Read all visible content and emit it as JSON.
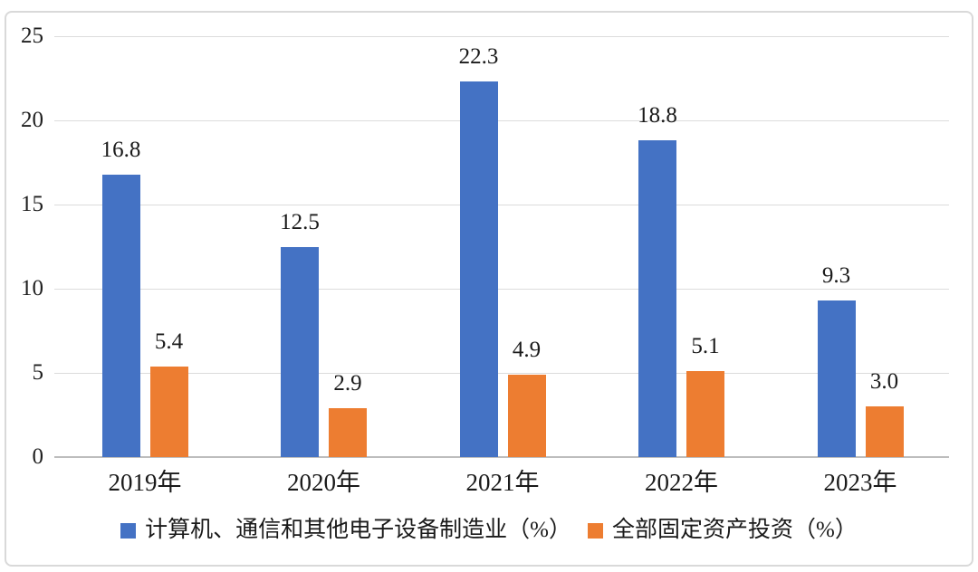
{
  "chart_data": {
    "type": "bar",
    "title": "",
    "xlabel": "",
    "ylabel": "",
    "categories": [
      "2019年",
      "2020年",
      "2021年",
      "2022年",
      "2023年"
    ],
    "series": [
      {
        "name": "计算机、通信和其他电子设备制造业（%）",
        "color": "#4472C4",
        "values": [
          16.8,
          12.5,
          22.3,
          18.8,
          9.3
        ]
      },
      {
        "name": "全部固定资产投资（%）",
        "color": "#ED7D31",
        "values": [
          5.4,
          2.9,
          4.9,
          5.1,
          3.0
        ]
      }
    ],
    "y_ticks": [
      0,
      5,
      10,
      15,
      20,
      25
    ],
    "ylim": [
      0,
      25
    ],
    "grid": "horizontal-light",
    "data_labels": "one-decimal-above-bars",
    "legend_position": "bottom-center",
    "colors": {
      "grid": "#dcdcdc",
      "axis_baseline": "#bdbdbd",
      "text": "#1a1a1a",
      "card_border": "#d9d9d9",
      "background": "#ffffff"
    }
  }
}
